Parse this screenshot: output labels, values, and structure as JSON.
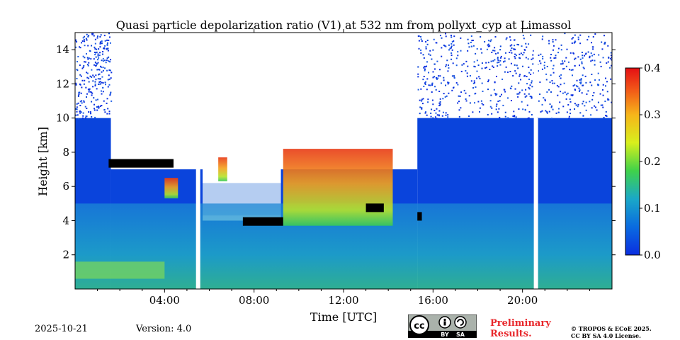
{
  "chart_data": {
    "type": "heatmap",
    "title": "Quasi particle depolarization ratio (V1) at 532 nm from pollyxt_cyp at Limassol",
    "xlabel": "Time [UTC]",
    "ylabel": "Height [km]",
    "xlim": [
      0,
      24
    ],
    "ylim": [
      0,
      15
    ],
    "x_ticks": [
      {
        "value": 4,
        "label": "04:00"
      },
      {
        "value": 8,
        "label": "08:00"
      },
      {
        "value": 12,
        "label": "12:00"
      },
      {
        "value": 16,
        "label": "16:00"
      },
      {
        "value": 20,
        "label": "20:00"
      }
    ],
    "y_ticks": [
      {
        "value": 2,
        "label": "2"
      },
      {
        "value": 4,
        "label": "4"
      },
      {
        "value": 6,
        "label": "6"
      },
      {
        "value": 8,
        "label": "8"
      },
      {
        "value": 10,
        "label": "10"
      },
      {
        "value": 12,
        "label": "12"
      },
      {
        "value": 14,
        "label": "14"
      }
    ],
    "colorbar": {
      "range": [
        0.0,
        0.4
      ],
      "ticks": [
        {
          "value": 0.0,
          "label": "0.0"
        },
        {
          "value": 0.1,
          "label": "0.1"
        },
        {
          "value": 0.2,
          "label": "0.2"
        },
        {
          "value": 0.3,
          "label": "0.3"
        },
        {
          "value": 0.4,
          "label": "0.4"
        }
      ]
    },
    "data_gaps_utc": [
      5.5,
      20.6
    ],
    "cloud_base_km": [
      {
        "start": 1.5,
        "end": 4.4,
        "height": 7.1
      },
      {
        "start": 7.5,
        "end": 9.3,
        "height": 3.7
      },
      {
        "start": 13.0,
        "end": 13.8,
        "height": 4.5
      },
      {
        "start": 15.3,
        "end": 15.5,
        "height": 4.0
      }
    ],
    "dust_layers": [
      {
        "start": 9.3,
        "end": 14.2,
        "base_km": 3.7,
        "top_km": 8.2,
        "value": 0.33
      },
      {
        "start": 4.0,
        "end": 4.6,
        "base_km": 5.3,
        "top_km": 6.5,
        "value": 0.28
      },
      {
        "start": 6.4,
        "end": 6.8,
        "base_km": 6.3,
        "top_km": 7.7,
        "value": 0.32
      }
    ]
  },
  "footer": {
    "date": "2025-10-21",
    "version": "Version: 4.0",
    "preliminary_line1": "Preliminary",
    "preliminary_line2": "Results.",
    "copyright_line1": "© TROPOS & ECoE 2025.",
    "copyright_line2": "CC BY SA 4.0 License.",
    "license_badge": {
      "cc": "cc",
      "by": "BY",
      "sa": "SA"
    }
  }
}
